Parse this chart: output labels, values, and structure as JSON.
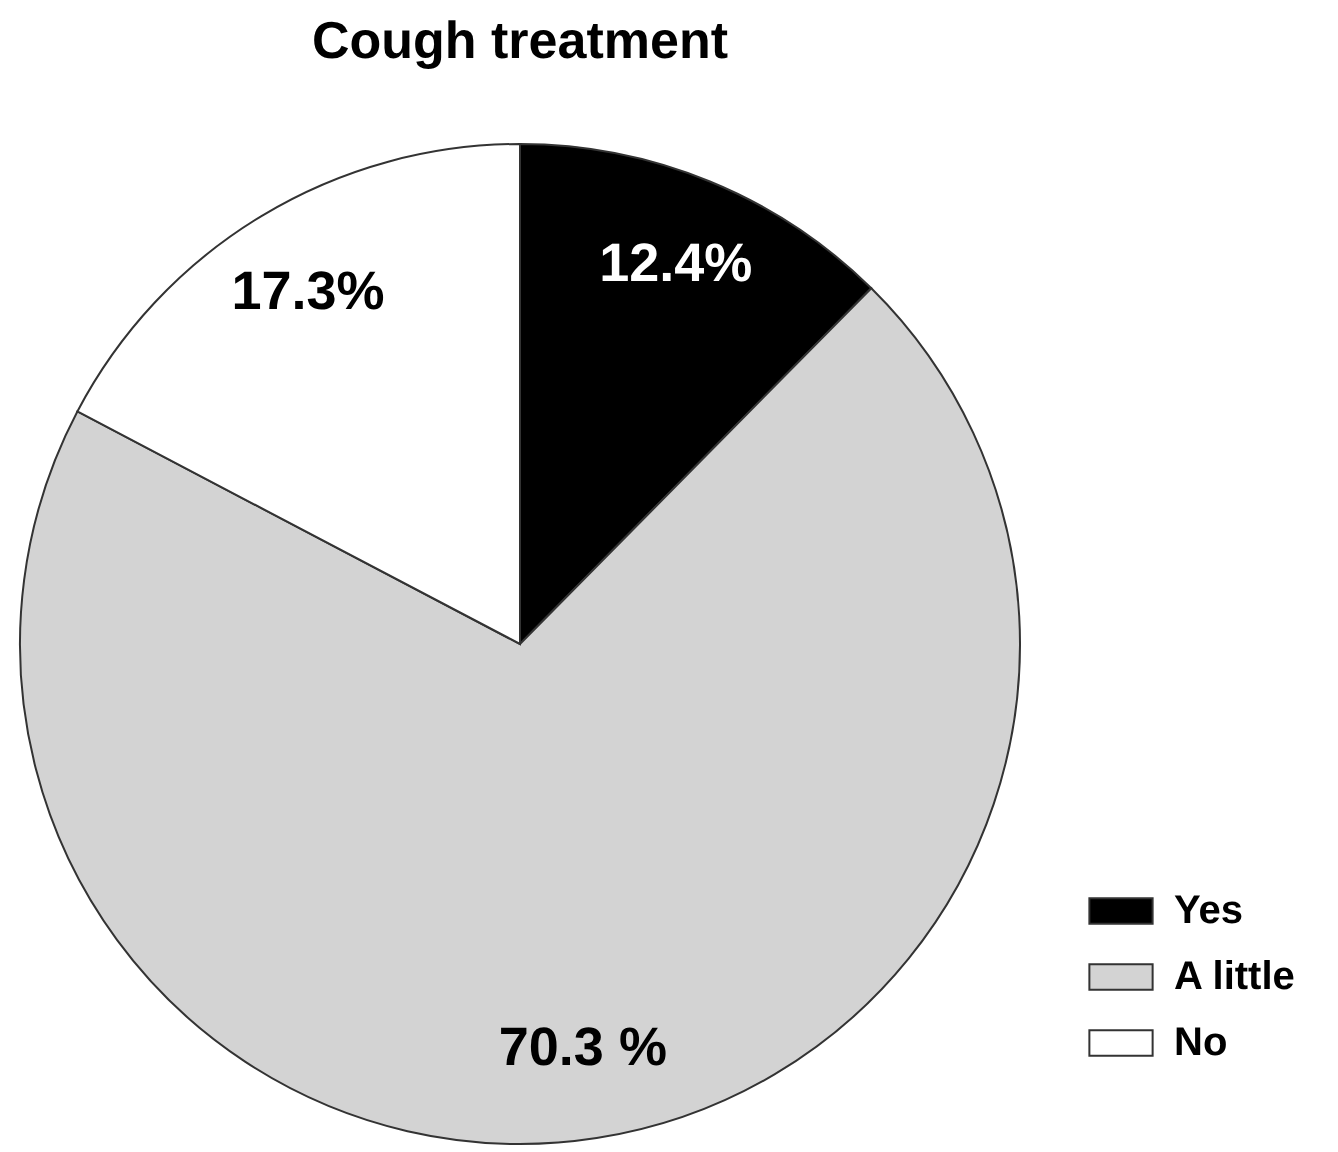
{
  "chart_data": {
    "type": "pie",
    "title": "Cough treatment",
    "categories": [
      "Yes",
      "A little",
      "No"
    ],
    "values": [
      12.4,
      70.3,
      17.3
    ],
    "colors": [
      "#000000",
      "#d3d3d3",
      "#ffffff"
    ],
    "value_labels": [
      "12.4%",
      "70.3 %",
      "17.3%"
    ],
    "legend": "bottom right"
  }
}
